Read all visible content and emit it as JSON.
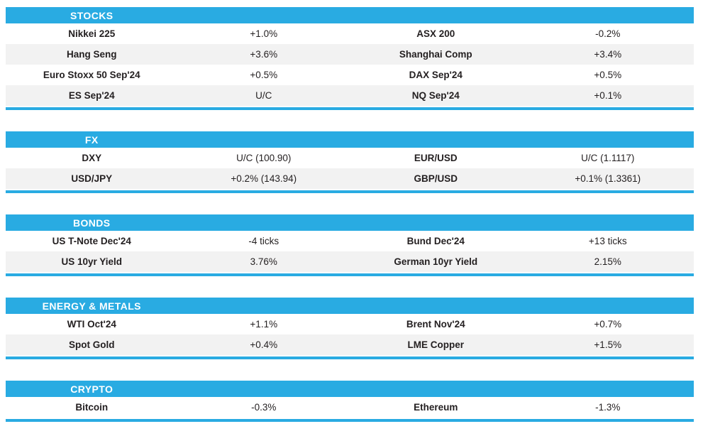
{
  "colors": {
    "accent_blue": "#29abe2",
    "row_alt_gray": "#f2f2f2",
    "text": "#231f20",
    "header_text": "#ffffff"
  },
  "chart_data": [
    {
      "type": "table",
      "title": "STOCKS",
      "columns": [
        "instrument",
        "change",
        "instrument",
        "change"
      ],
      "rows": [
        [
          "Nikkei 225",
          "+1.0%",
          "ASX 200",
          "-0.2%"
        ],
        [
          "Hang Seng",
          "+3.6%",
          "Shanghai Comp",
          "+3.4%"
        ],
        [
          "Euro Stoxx 50 Sep'24",
          "+0.5%",
          "DAX Sep'24",
          "+0.5%"
        ],
        [
          "ES Sep'24",
          "U/C",
          "NQ Sep'24",
          "+0.1%"
        ]
      ]
    },
    {
      "type": "table",
      "title": "FX",
      "columns": [
        "instrument",
        "change",
        "instrument",
        "change"
      ],
      "rows": [
        [
          "DXY",
          "U/C (100.90)",
          "EUR/USD",
          "U/C (1.1117)"
        ],
        [
          "USD/JPY",
          "+0.2% (143.94)",
          "GBP/USD",
          "+0.1% (1.3361)"
        ]
      ]
    },
    {
      "type": "table",
      "title": "BONDS",
      "columns": [
        "instrument",
        "change",
        "instrument",
        "change"
      ],
      "rows": [
        [
          "US T-Note Dec'24",
          "-4 ticks",
          "Bund Dec'24",
          "+13 ticks"
        ],
        [
          "US 10yr Yield",
          "3.76%",
          "German 10yr Yield",
          "2.15%"
        ]
      ]
    },
    {
      "type": "table",
      "title": "ENERGY & METALS",
      "columns": [
        "instrument",
        "change",
        "instrument",
        "change"
      ],
      "rows": [
        [
          "WTI Oct'24",
          "+1.1%",
          "Brent Nov'24",
          "+0.7%"
        ],
        [
          "Spot Gold",
          "+0.4%",
          "LME Copper",
          "+1.5%"
        ]
      ]
    },
    {
      "type": "table",
      "title": "CRYPTO",
      "columns": [
        "instrument",
        "change",
        "instrument",
        "change"
      ],
      "rows": [
        [
          "Bitcoin",
          "-0.3%",
          "Ethereum",
          "-1.3%"
        ]
      ]
    }
  ]
}
